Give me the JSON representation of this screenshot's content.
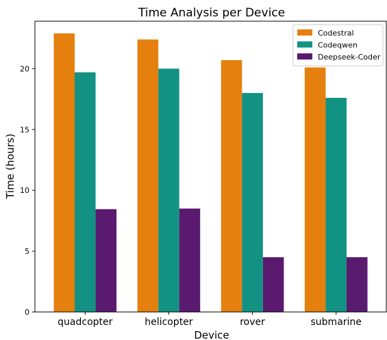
{
  "chart_data": {
    "type": "bar",
    "title": "Time Analysis per Device",
    "xlabel": "Device",
    "ylabel": "Time (hours)",
    "categories": [
      "quadcopter",
      "helicopter",
      "rover",
      "submarine"
    ],
    "series": [
      {
        "name": "Codestral",
        "color": "#e5800e",
        "values": [
          22.9,
          22.4,
          20.7,
          20.1
        ]
      },
      {
        "name": "Codeqwen",
        "color": "#129283",
        "values": [
          19.7,
          20.0,
          18.0,
          17.6
        ]
      },
      {
        "name": "Deepseek-Coder",
        "color": "#5a1a6f",
        "values": [
          8.45,
          8.5,
          4.5,
          4.5
        ]
      }
    ],
    "ylim": [
      0,
      23.9
    ],
    "yticks": [
      0,
      5,
      10,
      15,
      20
    ],
    "grid": false,
    "legend": "top-right"
  }
}
